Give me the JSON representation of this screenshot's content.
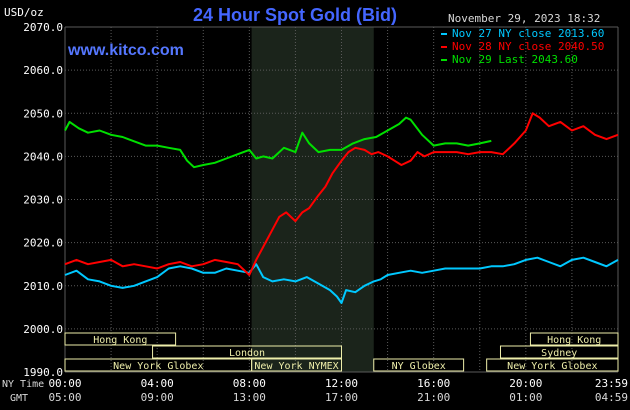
{
  "header": {
    "title": "24 Hour Spot Gold (Bid)",
    "y_unit": "USD/oz",
    "date_time": "November 29, 2023 18:32",
    "site": "www.kitco.com"
  },
  "colors": {
    "background": "#000000",
    "plot_bg": "#000000",
    "highlight_bg": "#1b241b",
    "grid": "#5a5a5a",
    "title": "#4466ff",
    "site": "#5577ff",
    "text": "#d8d8d8",
    "tick_text": "#ffffff",
    "market_fill": "#eeeeaa",
    "market_text": "#222222"
  },
  "axis_labels": {
    "ny_time": "NY Time",
    "gmt": "GMT"
  },
  "chart_data": {
    "type": "line",
    "title": "24 Hour Spot Gold (Bid)",
    "ylabel": "USD/oz",
    "ylim": [
      1990,
      2070
    ],
    "yticks": [
      "2070.0",
      "2060.0",
      "2050.0",
      "2040.0",
      "2030.0",
      "2020.0",
      "2010.0",
      "2000.0",
      "1990.0"
    ],
    "xlim": [
      0,
      24
    ],
    "xticks_ny": [
      "00:00",
      "04:00",
      "08:00",
      "12:00",
      "16:00",
      "20:00",
      "23:59"
    ],
    "xticks_gmt": [
      "05:00",
      "09:00",
      "13:00",
      "17:00",
      "21:00",
      "01:00",
      "04:59"
    ],
    "highlight_range": [
      8.1,
      13.4
    ],
    "grid": true,
    "legend_position": "top-right",
    "series": [
      {
        "name": "Nov 27 NY close 2013.60",
        "color": "#00c8ff",
        "points": [
          [
            0,
            2012.5
          ],
          [
            0.5,
            2013.5
          ],
          [
            1,
            2011.5
          ],
          [
            1.5,
            2011
          ],
          [
            2,
            2010
          ],
          [
            2.5,
            2009.5
          ],
          [
            3,
            2010
          ],
          [
            3.5,
            2011
          ],
          [
            4,
            2012
          ],
          [
            4.5,
            2014
          ],
          [
            5,
            2014.5
          ],
          [
            5.5,
            2014
          ],
          [
            6,
            2013
          ],
          [
            6.5,
            2013
          ],
          [
            7,
            2014
          ],
          [
            7.5,
            2013.5
          ],
          [
            8,
            2013
          ],
          [
            8.3,
            2015
          ],
          [
            8.6,
            2012
          ],
          [
            9,
            2011
          ],
          [
            9.5,
            2011.5
          ],
          [
            10,
            2011
          ],
          [
            10.5,
            2012
          ],
          [
            11,
            2010.5
          ],
          [
            11.5,
            2009
          ],
          [
            11.8,
            2007.5
          ],
          [
            12,
            2006
          ],
          [
            12.2,
            2009
          ],
          [
            12.6,
            2008.5
          ],
          [
            13,
            2010
          ],
          [
            13.4,
            2011
          ],
          [
            13.7,
            2011.5
          ],
          [
            14,
            2012.5
          ],
          [
            14.5,
            2013
          ],
          [
            15,
            2013.5
          ],
          [
            15.5,
            2013
          ],
          [
            16,
            2013.5
          ],
          [
            16.5,
            2014
          ],
          [
            17,
            2014
          ],
          [
            17.5,
            2014
          ],
          [
            18,
            2014
          ],
          [
            18.5,
            2014.5
          ],
          [
            19,
            2014.5
          ],
          [
            19.5,
            2015
          ],
          [
            20,
            2016
          ],
          [
            20.5,
            2016.5
          ],
          [
            21,
            2015.5
          ],
          [
            21.5,
            2014.5
          ],
          [
            22,
            2016
          ],
          [
            22.5,
            2016.5
          ],
          [
            23,
            2015.5
          ],
          [
            23.5,
            2014.5
          ],
          [
            24,
            2016
          ]
        ]
      },
      {
        "name": "Nov 28 NY close 2040.50",
        "color": "#ff0000",
        "points": [
          [
            0,
            2015
          ],
          [
            0.5,
            2016
          ],
          [
            1,
            2015
          ],
          [
            1.5,
            2015.5
          ],
          [
            2,
            2016
          ],
          [
            2.5,
            2014.5
          ],
          [
            3,
            2015
          ],
          [
            3.5,
            2014.5
          ],
          [
            4,
            2014
          ],
          [
            4.5,
            2015
          ],
          [
            5,
            2015.5
          ],
          [
            5.5,
            2014.5
          ],
          [
            6,
            2015
          ],
          [
            6.5,
            2016
          ],
          [
            7,
            2015.5
          ],
          [
            7.5,
            2015
          ],
          [
            8,
            2012.5
          ],
          [
            8.3,
            2016
          ],
          [
            8.6,
            2019
          ],
          [
            9,
            2023
          ],
          [
            9.3,
            2026
          ],
          [
            9.6,
            2027
          ],
          [
            10,
            2025
          ],
          [
            10.3,
            2027
          ],
          [
            10.6,
            2028
          ],
          [
            11,
            2031
          ],
          [
            11.3,
            2033
          ],
          [
            11.6,
            2036
          ],
          [
            12,
            2039
          ],
          [
            12.3,
            2041
          ],
          [
            12.6,
            2042
          ],
          [
            13,
            2041.5
          ],
          [
            13.3,
            2040.5
          ],
          [
            13.6,
            2041
          ],
          [
            14,
            2040
          ],
          [
            14.3,
            2039
          ],
          [
            14.6,
            2038
          ],
          [
            15,
            2039
          ],
          [
            15.3,
            2041
          ],
          [
            15.6,
            2040
          ],
          [
            16,
            2041
          ],
          [
            16.5,
            2041
          ],
          [
            17,
            2041
          ],
          [
            17.5,
            2040.5
          ],
          [
            18,
            2041
          ],
          [
            18.5,
            2041
          ],
          [
            19,
            2040.5
          ],
          [
            19.5,
            2043
          ],
          [
            20,
            2046
          ],
          [
            20.3,
            2050
          ],
          [
            20.6,
            2049
          ],
          [
            21,
            2047
          ],
          [
            21.5,
            2048
          ],
          [
            22,
            2046
          ],
          [
            22.5,
            2047
          ],
          [
            23,
            2045
          ],
          [
            23.5,
            2044
          ],
          [
            24,
            2045
          ]
        ]
      },
      {
        "name": "Nov 29 Last 2043.60",
        "color": "#00e000",
        "points": [
          [
            0,
            2046
          ],
          [
            0.2,
            2048
          ],
          [
            0.6,
            2046.5
          ],
          [
            1,
            2045.5
          ],
          [
            1.5,
            2046
          ],
          [
            2,
            2045
          ],
          [
            2.5,
            2044.5
          ],
          [
            3,
            2043.5
          ],
          [
            3.5,
            2042.5
          ],
          [
            4,
            2042.5
          ],
          [
            4.5,
            2042
          ],
          [
            5,
            2041.5
          ],
          [
            5.3,
            2039
          ],
          [
            5.6,
            2037.5
          ],
          [
            6,
            2038
          ],
          [
            6.5,
            2038.5
          ],
          [
            7,
            2039.5
          ],
          [
            7.5,
            2040.5
          ],
          [
            8,
            2041.5
          ],
          [
            8.3,
            2039.5
          ],
          [
            8.6,
            2040
          ],
          [
            9,
            2039.5
          ],
          [
            9.5,
            2042
          ],
          [
            10,
            2041
          ],
          [
            10.3,
            2045.5
          ],
          [
            10.6,
            2043
          ],
          [
            11,
            2041
          ],
          [
            11.5,
            2041.5
          ],
          [
            12,
            2041.5
          ],
          [
            12.5,
            2043
          ],
          [
            13,
            2044
          ],
          [
            13.5,
            2044.5
          ],
          [
            14,
            2046
          ],
          [
            14.5,
            2047.5
          ],
          [
            14.8,
            2049
          ],
          [
            15,
            2048.5
          ],
          [
            15.5,
            2045
          ],
          [
            16,
            2042.5
          ],
          [
            16.5,
            2043
          ],
          [
            17,
            2043
          ],
          [
            17.5,
            2042.5
          ],
          [
            18,
            2043
          ],
          [
            18.5,
            2043.6
          ]
        ]
      }
    ],
    "market_rows": [
      [
        {
          "label": "Hong Kong",
          "start": 0,
          "end": 4.8
        },
        {
          "label": "Hong Kong",
          "start": 20.2,
          "end": 24
        }
      ],
      [
        {
          "label": "London",
          "start": 3.8,
          "end": 12
        },
        {
          "label": "Sydney",
          "start": 18.9,
          "end": 24
        }
      ],
      [
        {
          "label": "New York Globex",
          "start": 0,
          "end": 8.1
        },
        {
          "label": "New York NYMEX",
          "start": 8.1,
          "end": 12
        },
        {
          "label": "NY Globex",
          "start": 13.4,
          "end": 17.3
        },
        {
          "label": "New York Globex",
          "start": 18.3,
          "end": 24
        }
      ]
    ]
  }
}
